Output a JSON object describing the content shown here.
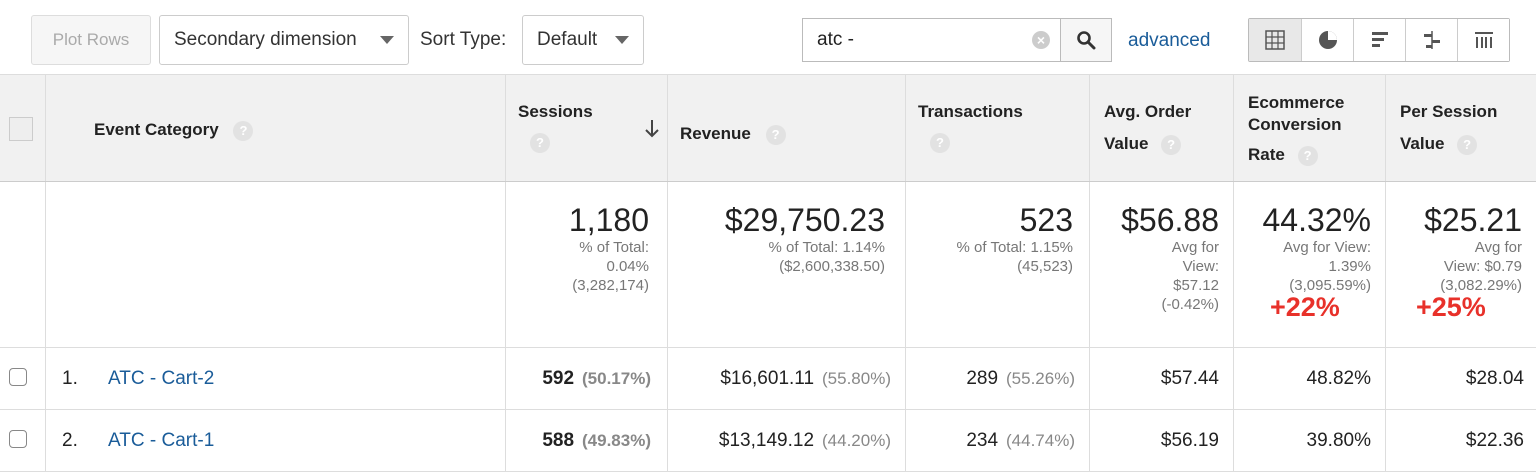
{
  "toolbar": {
    "plot_rows_label": "Plot Rows",
    "secondary_dimension_label": "Secondary dimension",
    "sort_type_label": "Sort Type:",
    "sort_type_value": "Default",
    "search_value": "atc -",
    "advanced_label": "advanced",
    "view_icons": [
      "table-view-icon",
      "pie-view-icon",
      "bar-view-icon",
      "comparison-view-icon",
      "pivot-view-icon"
    ]
  },
  "table": {
    "headers": {
      "event_category": "Event Category",
      "sessions": "Sessions",
      "revenue": "Revenue",
      "transactions": "Transactions",
      "avg_order_value_1": "Avg. Order",
      "avg_order_value_2": "Value",
      "ecr_1": "Ecommerce",
      "ecr_2": "Conversion",
      "ecr_3": "Rate",
      "psv_1": "Per Session",
      "psv_2": "Value",
      "help": "?"
    },
    "totals": {
      "sessions": "1,180",
      "sessions_sub1": "% of Total:",
      "sessions_sub2": "0.04%",
      "sessions_sub3": "(3,282,174)",
      "revenue": "$29,750.23",
      "revenue_sub1": "% of Total: 1.14%",
      "revenue_sub2": "($2,600,338.50)",
      "transactions": "523",
      "transactions_sub1": "% of Total: 1.15%",
      "transactions_sub2": "(45,523)",
      "aov": "$56.88",
      "aov_sub1": "Avg for",
      "aov_sub2": "View:",
      "aov_sub3": "$57.12",
      "aov_sub4": "(-0.42%)",
      "ecr": "44.32%",
      "ecr_sub1": "Avg for View:",
      "ecr_sub2": "1.39%",
      "ecr_sub3": "(3,095.59%)",
      "ecr_delta": "+22%",
      "psv": "$25.21",
      "psv_sub1": "Avg for",
      "psv_sub2": "View: $0.79",
      "psv_sub3": "(3,082.29%)",
      "psv_delta": "+25%"
    },
    "rows": [
      {
        "index": "1.",
        "category": "ATC - Cart-2",
        "sessions": "592",
        "sessions_pct": "(50.17%)",
        "revenue": "$16,601.11",
        "revenue_pct": "(55.80%)",
        "transactions": "289",
        "transactions_pct": "(55.26%)",
        "aov": "$57.44",
        "ecr": "48.82%",
        "psv": "$28.04"
      },
      {
        "index": "2.",
        "category": "ATC - Cart-1",
        "sessions": "588",
        "sessions_pct": "(49.83%)",
        "revenue": "$13,149.12",
        "revenue_pct": "(44.20%)",
        "transactions": "234",
        "transactions_pct": "(44.74%)",
        "aov": "$56.19",
        "ecr": "39.80%",
        "psv": "$22.36"
      }
    ]
  }
}
